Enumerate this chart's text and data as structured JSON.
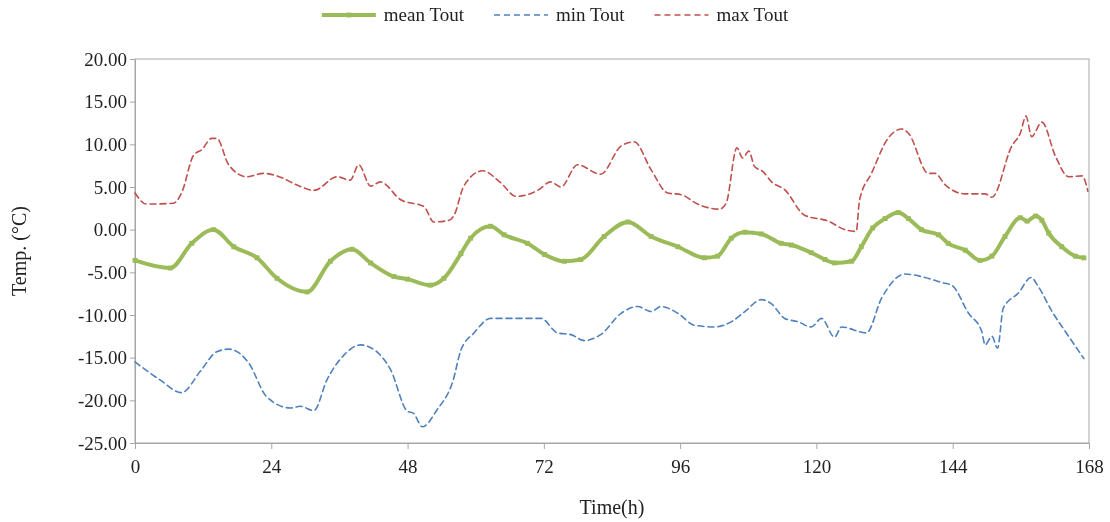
{
  "chart_data": {
    "type": "line",
    "xlabel": "Time(h)",
    "ylabel": "Temp. (°C)",
    "legend": "top",
    "grid": false,
    "xlim": [
      0,
      168
    ],
    "xticks": [
      0,
      24,
      48,
      72,
      96,
      120,
      144,
      168
    ],
    "ylim": [
      -25,
      20
    ],
    "yticks": [
      {
        "value": -25,
        "label": "-25.00"
      },
      {
        "value": -20,
        "label": "-20.00"
      },
      {
        "value": -15,
        "label": "-15.00"
      },
      {
        "value": -10,
        "label": "-10.00"
      },
      {
        "value": -5,
        "label": "-5.00"
      },
      {
        "value": 0,
        "label": "0.00"
      },
      {
        "value": 5,
        "label": "5.00"
      },
      {
        "value": 10,
        "label": "10.00"
      },
      {
        "value": 15,
        "label": "15.00"
      },
      {
        "value": 20,
        "label": "20.00"
      }
    ],
    "series": [
      {
        "name": "mean Tout",
        "color": "#9bbb59",
        "marker": "square",
        "line_style": "solid",
        "x": [
          0,
          6.2,
          10,
          13.8,
          17.4,
          21.5,
          25,
          30.3,
          34.4,
          38.2,
          41.5,
          45.6,
          48,
          52,
          54.4,
          57.4,
          59.1,
          62.6,
          65,
          69.1,
          72.1,
          75.6,
          78.5,
          82.6,
          86.8,
          90.9,
          95.6,
          100.3,
          102.6,
          105,
          107.4,
          110.3,
          113.8,
          115.6,
          119.1,
          121.5,
          123.2,
          126.2,
          127.9,
          129.9,
          132.1,
          134.4,
          136.2,
          138.5,
          141.5,
          143.2,
          146.2,
          148.8,
          150.9,
          153.2,
          155.9,
          157.1,
          158.6,
          159.7,
          160.9,
          163.2,
          165.6,
          167.1
        ],
        "values": [
          -3.6,
          -4.5,
          -1.6,
          0,
          -2,
          -3.3,
          -5.7,
          -7.3,
          -3.7,
          -2.3,
          -3.9,
          -5.5,
          -5.8,
          -6.5,
          -5.7,
          -2.8,
          -1,
          0.4,
          -0.6,
          -1.6,
          -2.9,
          -3.7,
          -3.5,
          -0.8,
          0.9,
          -0.8,
          -2,
          -3.3,
          -3.1,
          -1,
          -0.3,
          -0.5,
          -1.6,
          -1.8,
          -2.7,
          -3.5,
          -3.9,
          -3.7,
          -2,
          0.2,
          1.3,
          2,
          1.3,
          0,
          -0.6,
          -1.6,
          -2.4,
          -3.6,
          -3.1,
          -0.8,
          1.4,
          1,
          1.6,
          1.1,
          -0.4,
          -2,
          -3.1,
          -3.3
        ]
      },
      {
        "name": "min Tout",
        "color": "#4f81bd",
        "marker": "none",
        "line_style": "dashed",
        "x": [
          0,
          4.4,
          8.2,
          11.5,
          14.4,
          16.5,
          20,
          23.2,
          27.4,
          29.1,
          31.5,
          33.8,
          36.8,
          39.7,
          42.9,
          45,
          48,
          49,
          50.6,
          53.2,
          56,
          57.4,
          59.7,
          62.6,
          67.4,
          71.5,
          74.4,
          76.8,
          79.1,
          82,
          85.6,
          88.5,
          90.9,
          92.6,
          95.6,
          98.5,
          102.1,
          105,
          107.4,
          110.3,
          112.1,
          114.4,
          116.8,
          119.1,
          120.9,
          123.2,
          124.4,
          128.8,
          131.5,
          135.6,
          139.1,
          142.1,
          143.8,
          146.8,
          149.1,
          149.7,
          150.9,
          151.9,
          152.9,
          155.6,
          157.8,
          159.1,
          161.5,
          163.8,
          167.1
        ],
        "values": [
          -15.5,
          -17.6,
          -19.1,
          -16.6,
          -14.3,
          -14,
          -15.6,
          -19.6,
          -20.9,
          -20.7,
          -21.2,
          -17.6,
          -14.7,
          -13.5,
          -14.5,
          -16.4,
          -21.3,
          -21.5,
          -23.1,
          -21.1,
          -17.7,
          -14.1,
          -12.1,
          -10.4,
          -10.4,
          -10.4,
          -12.1,
          -12.3,
          -13,
          -12.3,
          -9.8,
          -9,
          -9.6,
          -9,
          -9.8,
          -11.2,
          -11.4,
          -10.8,
          -9.6,
          -8.2,
          -8.7,
          -10.4,
          -10.8,
          -11.4,
          -10.4,
          -12.6,
          -11.4,
          -12.1,
          -8,
          -5.2,
          -5.6,
          -6.2,
          -6.5,
          -9.8,
          -11.9,
          -13.5,
          -12.5,
          -13.9,
          -9.2,
          -7.4,
          -5.6,
          -6.7,
          -9.6,
          -11.9,
          -15.1
        ]
      },
      {
        "name": "max Tout",
        "color": "#c0504d",
        "marker": "none",
        "line_style": "dashed",
        "x": [
          0,
          2,
          6.8,
          8.2,
          10.3,
          11.8,
          13.5,
          14.4,
          16.5,
          19.7,
          22.6,
          25,
          29,
          31.5,
          35.6,
          37.9,
          39.4,
          41.5,
          43.2,
          46.8,
          50.9,
          52.6,
          55.3,
          56.2,
          57.9,
          61.2,
          64.4,
          67.1,
          70.9,
          73.2,
          75,
          77.9,
          82,
          85.6,
          87.9,
          90.9,
          93.8,
          96.2,
          99.1,
          102.9,
          104.1,
          106,
          107,
          108.1,
          109.1,
          110.6,
          112.1,
          114.4,
          117.9,
          122.1,
          125,
          127,
          127.6,
          129.7,
          132.6,
          135,
          136.2,
          139.7,
          140.9,
          142.6,
          146.2,
          149.7,
          150.9,
          154.4,
          155.9,
          156.9,
          157.9,
          159.7,
          162.1,
          164.4,
          166.8,
          167.8
        ],
        "values": [
          4.3,
          3,
          3.1,
          4.3,
          8.7,
          9.4,
          10.7,
          10.7,
          7.6,
          6.2,
          6.6,
          6.3,
          5.1,
          4.6,
          6.2,
          5.8,
          7.6,
          5.1,
          5.6,
          3.5,
          2.7,
          0.9,
          1.1,
          1.7,
          5.1,
          6.9,
          5.5,
          3.9,
          4.6,
          5.6,
          5,
          7.6,
          6.5,
          9.8,
          10.3,
          7,
          4.3,
          4.1,
          3,
          2.4,
          3.1,
          9.6,
          8.4,
          9.2,
          7.4,
          6.8,
          5.6,
          4.7,
          1.7,
          1,
          0,
          -0.2,
          3.5,
          6.6,
          10.7,
          11.8,
          11.3,
          6.6,
          6.6,
          5.3,
          4.2,
          4.2,
          3.8,
          9.8,
          11.3,
          13.3,
          10.9,
          12.6,
          8.6,
          6.2,
          6.3,
          4.5
        ]
      }
    ]
  }
}
